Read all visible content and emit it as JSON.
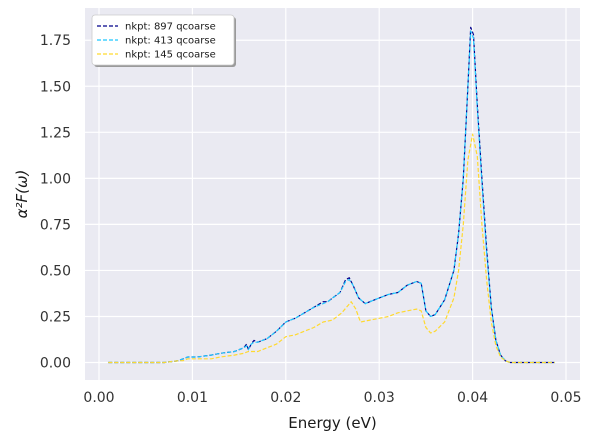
{
  "chart_data": {
    "type": "line",
    "title": "",
    "xlabel": "Energy (eV)",
    "ylabel": "α²F(ω)",
    "xlim": [
      -0.0015,
      0.0515
    ],
    "ylim": [
      -0.095,
      1.925
    ],
    "x_ticks": [
      0.0,
      0.01,
      0.02,
      0.03,
      0.04,
      0.05
    ],
    "x_tick_labels": [
      "0.00",
      "0.01",
      "0.02",
      "0.03",
      "0.04",
      "0.05"
    ],
    "y_ticks": [
      0.0,
      0.25,
      0.5,
      0.75,
      1.0,
      1.25,
      1.5,
      1.75
    ],
    "y_tick_labels": [
      "0.00",
      "0.25",
      "0.50",
      "0.75",
      "1.00",
      "1.25",
      "1.50",
      "1.75"
    ],
    "grid": true,
    "background": "#eaeaf2",
    "legend_position": "top-left",
    "series": [
      {
        "name": "nkpt: 897 qcoarse",
        "color": "#00008b",
        "style": "dashed",
        "x": [
          0.001,
          0.004,
          0.007,
          0.0085,
          0.009,
          0.0095,
          0.0105,
          0.012,
          0.013,
          0.0145,
          0.0155,
          0.0158,
          0.016,
          0.0163,
          0.0166,
          0.017,
          0.0175,
          0.018,
          0.019,
          0.02,
          0.0205,
          0.021,
          0.022,
          0.023,
          0.024,
          0.0245,
          0.025,
          0.0258,
          0.0264,
          0.0268,
          0.0272,
          0.0278,
          0.0285,
          0.029,
          0.03,
          0.031,
          0.032,
          0.033,
          0.034,
          0.0345,
          0.035,
          0.0355,
          0.036,
          0.037,
          0.038,
          0.0385,
          0.039,
          0.0395,
          0.0398,
          0.0401,
          0.0405,
          0.041,
          0.0415,
          0.042,
          0.0425,
          0.043,
          0.0435,
          0.044,
          0.045,
          0.046,
          0.047,
          0.0488
        ],
        "y": [
          0.0,
          0.0,
          0.0,
          0.01,
          0.02,
          0.03,
          0.03,
          0.04,
          0.05,
          0.06,
          0.08,
          0.1,
          0.07,
          0.1,
          0.12,
          0.11,
          0.12,
          0.13,
          0.17,
          0.22,
          0.23,
          0.24,
          0.27,
          0.3,
          0.33,
          0.33,
          0.35,
          0.38,
          0.45,
          0.46,
          0.42,
          0.35,
          0.32,
          0.33,
          0.35,
          0.37,
          0.38,
          0.42,
          0.44,
          0.43,
          0.28,
          0.25,
          0.26,
          0.34,
          0.5,
          0.7,
          1.0,
          1.5,
          1.82,
          1.78,
          1.4,
          1.0,
          0.62,
          0.3,
          0.12,
          0.04,
          0.01,
          0.0,
          0.0,
          0.0,
          0.0,
          0.0
        ]
      },
      {
        "name": "nkpt: 413 qcoarse",
        "color": "#1ec8ff",
        "style": "dashed",
        "x": [
          0.001,
          0.004,
          0.007,
          0.0085,
          0.009,
          0.0095,
          0.0105,
          0.012,
          0.013,
          0.0145,
          0.0155,
          0.0158,
          0.016,
          0.0163,
          0.0166,
          0.017,
          0.0175,
          0.018,
          0.019,
          0.02,
          0.0205,
          0.021,
          0.022,
          0.023,
          0.024,
          0.0245,
          0.025,
          0.0258,
          0.0264,
          0.0268,
          0.0272,
          0.0278,
          0.0285,
          0.029,
          0.03,
          0.031,
          0.032,
          0.033,
          0.034,
          0.0345,
          0.035,
          0.0355,
          0.036,
          0.037,
          0.038,
          0.0385,
          0.039,
          0.0395,
          0.0398,
          0.0401,
          0.0405,
          0.041,
          0.0415,
          0.042,
          0.0425,
          0.043,
          0.0435,
          0.044,
          0.045,
          0.046,
          0.047,
          0.0488
        ],
        "y": [
          0.0,
          0.0,
          0.0,
          0.01,
          0.02,
          0.03,
          0.03,
          0.04,
          0.05,
          0.06,
          0.08,
          0.09,
          0.07,
          0.1,
          0.11,
          0.11,
          0.12,
          0.13,
          0.17,
          0.22,
          0.23,
          0.24,
          0.27,
          0.3,
          0.32,
          0.33,
          0.35,
          0.38,
          0.44,
          0.45,
          0.42,
          0.35,
          0.32,
          0.33,
          0.35,
          0.37,
          0.38,
          0.42,
          0.44,
          0.43,
          0.28,
          0.25,
          0.26,
          0.34,
          0.5,
          0.7,
          1.0,
          1.5,
          1.8,
          1.76,
          1.38,
          0.98,
          0.6,
          0.3,
          0.12,
          0.04,
          0.01,
          0.0,
          0.0,
          0.0,
          0.0,
          0.0
        ]
      },
      {
        "name": "nkpt: 145 qcoarse",
        "color": "#ffd92f",
        "style": "dashed",
        "x": [
          0.001,
          0.004,
          0.007,
          0.0085,
          0.009,
          0.0095,
          0.0105,
          0.012,
          0.013,
          0.0145,
          0.0155,
          0.016,
          0.017,
          0.018,
          0.019,
          0.02,
          0.021,
          0.022,
          0.023,
          0.024,
          0.025,
          0.026,
          0.0265,
          0.027,
          0.0275,
          0.028,
          0.029,
          0.03,
          0.031,
          0.032,
          0.033,
          0.034,
          0.0345,
          0.035,
          0.0355,
          0.036,
          0.037,
          0.038,
          0.0385,
          0.039,
          0.0395,
          0.04,
          0.0405,
          0.041,
          0.0415,
          0.042,
          0.0425,
          0.043,
          0.0435,
          0.044,
          0.045,
          0.046,
          0.047,
          0.0488
        ],
        "y": [
          0.0,
          0.0,
          0.0,
          0.01,
          0.01,
          0.02,
          0.02,
          0.02,
          0.03,
          0.04,
          0.05,
          0.06,
          0.06,
          0.08,
          0.1,
          0.14,
          0.15,
          0.17,
          0.19,
          0.22,
          0.23,
          0.27,
          0.3,
          0.33,
          0.29,
          0.22,
          0.23,
          0.24,
          0.25,
          0.27,
          0.28,
          0.29,
          0.28,
          0.19,
          0.16,
          0.17,
          0.22,
          0.35,
          0.5,
          0.75,
          1.1,
          1.24,
          1.12,
          0.75,
          0.45,
          0.22,
          0.09,
          0.03,
          0.01,
          0.0,
          0.0,
          0.0,
          0.0,
          0.0
        ]
      }
    ]
  }
}
